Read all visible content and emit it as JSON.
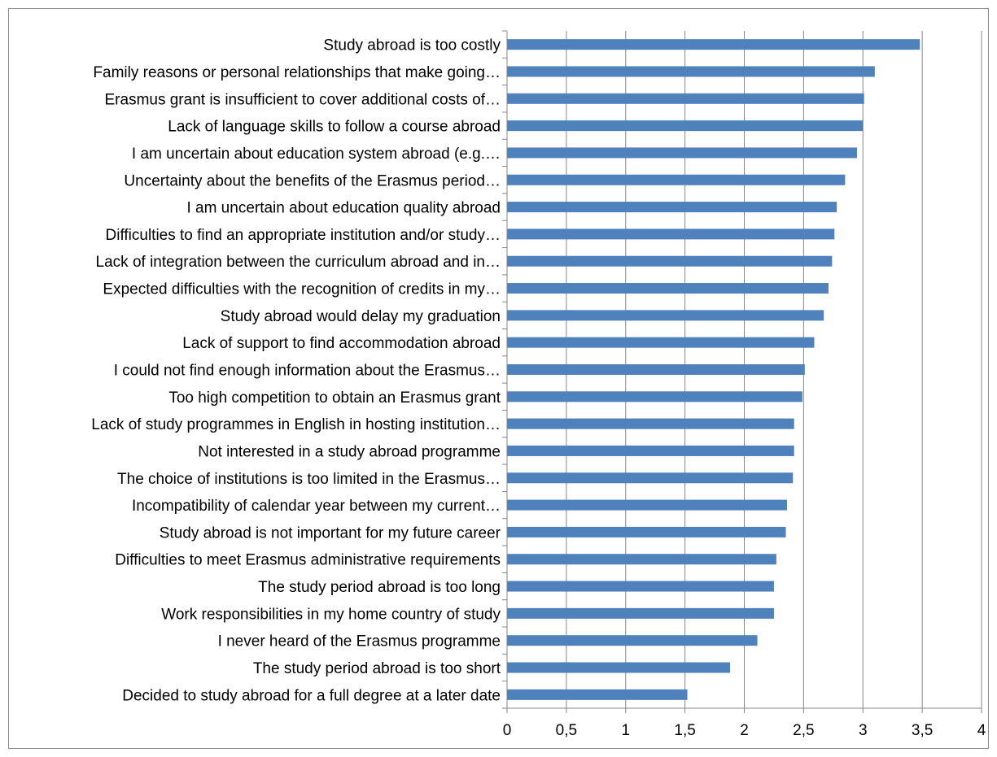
{
  "chart_data": {
    "type": "bar",
    "orientation": "horizontal",
    "categories": [
      "Study abroad  is too costly",
      "Family reasons or personal relationships that make going…",
      "Erasmus grant is insufficient to cover additional costs of…",
      "Lack of language skills to follow a course abroad",
      "I am uncertain about education system abroad (e.g.…",
      "Uncertainty about the benefits of the Erasmus period…",
      "I am uncertain about education quality abroad",
      "Difficulties to find an appropriate institution and/or study…",
      "Lack of integration between the curriculum abroad and in…",
      "Expected difficulties with the recognition of credits in my…",
      "Study abroad  would  delay my graduation",
      "Lack of support to find accommodation abroad",
      "I could not find enough information about the Erasmus…",
      "Too high competition to obtain an Erasmus grant",
      "Lack of study programmes in English in hosting institution…",
      "Not interested in a study abroad programme",
      "The choice of institutions is too limited in the Erasmus…",
      "Incompatibility of calendar year between my current…",
      "Study abroad is not important for my future career",
      "Difficulties to meet Erasmus administrative requirements",
      "The study period abroad is too long",
      "Work responsibilities in my home country of study",
      "I never heard of the Erasmus programme",
      "The study period abroad is too short",
      "Decided to study abroad for a full degree at a later date"
    ],
    "values": [
      3.48,
      3.1,
      3.01,
      3.0,
      2.95,
      2.85,
      2.78,
      2.76,
      2.74,
      2.71,
      2.67,
      2.59,
      2.51,
      2.49,
      2.42,
      2.42,
      2.41,
      2.36,
      2.35,
      2.27,
      2.25,
      2.25,
      2.11,
      1.88,
      1.52
    ],
    "title": "",
    "xlabel": "",
    "ylabel": "",
    "xlim": [
      0,
      4
    ],
    "x_ticks": [
      "0",
      "0,5",
      "1",
      "1,5",
      "2",
      "2,5",
      "3",
      "3,5",
      "4"
    ],
    "grid": "vertical",
    "legend": "none",
    "bar_color": "#4f81bd",
    "grid_color": "#868686"
  }
}
